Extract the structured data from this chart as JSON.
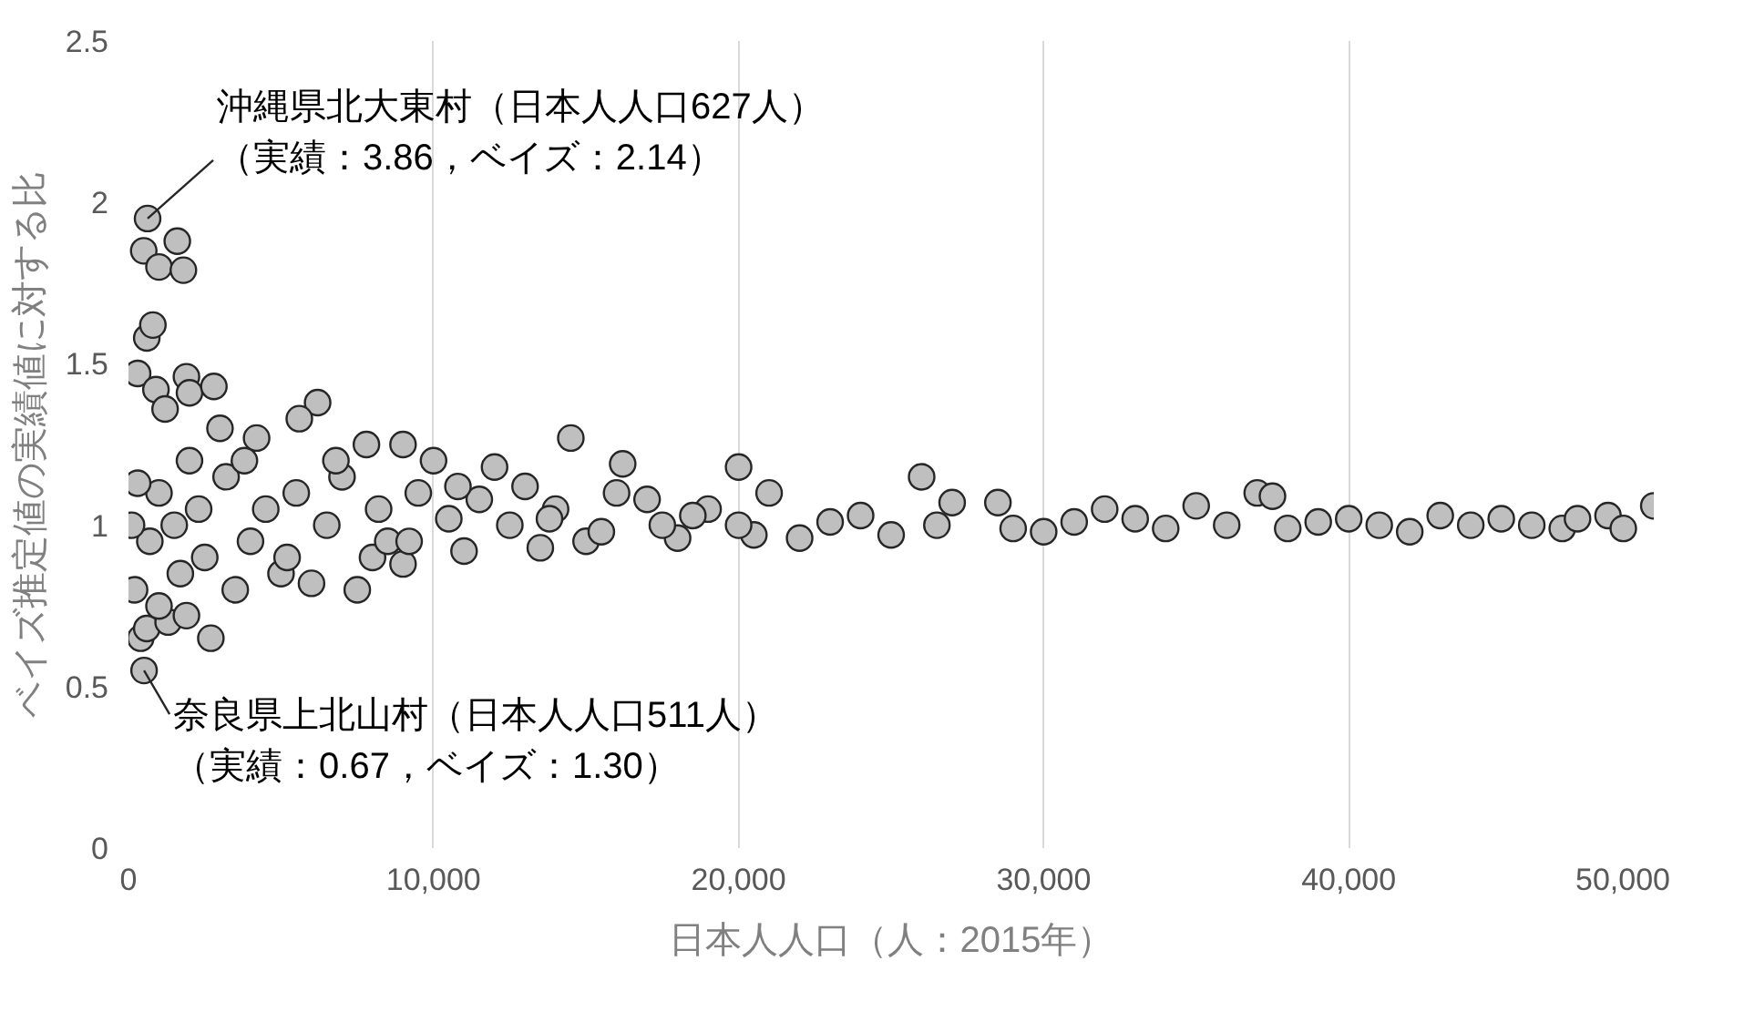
{
  "chart_data": {
    "type": "scatter",
    "xlabel": "日本人人口（人：2015年）",
    "ylabel": "ベイズ推定値の実績値に対する比",
    "xlim": [
      0,
      50000
    ],
    "ylim": [
      0,
      2.5
    ],
    "xticks": [
      {
        "value": 0,
        "label": "0"
      },
      {
        "value": 10000,
        "label": "10,000"
      },
      {
        "value": 20000,
        "label": "20,000"
      },
      {
        "value": 30000,
        "label": "30,000"
      },
      {
        "value": 40000,
        "label": "40,000"
      },
      {
        "value": 50000,
        "label": "50,000"
      }
    ],
    "yticks": [
      0,
      0.5,
      1,
      1.5,
      2,
      2.5
    ],
    "grid": "x",
    "marker": "circle",
    "annotations": [
      "沖縄県北大東村（日本人人口627人）",
      {
        "text": "（実績：3.86，ベイズ：2.14）",
        "x": 627,
        "y": 1.95
      },
      {
        "text": "奈良県上北山村（日本人人口511人）",
        "x": 511,
        "y": 0.55
      },
      "（実績：0.67，ベイズ：1.30）"
    ],
    "series": [
      {
        "color": "#bfbfbf",
        "x": [
          627,
          500,
          1000,
          1600,
          1800,
          300,
          600,
          800,
          900,
          1900,
          2000,
          2800,
          1200,
          6200,
          5600,
          14500,
          16200,
          20000,
          26000,
          511,
          400,
          600,
          1300,
          2700,
          1000,
          1900,
          7500,
          5000,
          9000,
          3000,
          4200,
          7800,
          9000,
          10000,
          12000,
          13000,
          2000,
          3500,
          6000,
          8000,
          11000,
          13500,
          15000,
          18000,
          20500,
          22000,
          25000,
          27000,
          28500,
          30000,
          32000,
          34000,
          35000,
          37000,
          37500,
          40000,
          42000,
          45000,
          47000,
          48500,
          50000,
          49000,
          44000,
          39000,
          36000,
          33000,
          31000,
          29000,
          24000,
          23000,
          21000,
          19000,
          17000,
          16000,
          14000,
          12500,
          11500,
          10500,
          9500,
          8500,
          7000,
          6500,
          5500,
          4500,
          4000,
          3200,
          2500,
          1500,
          1000,
          700,
          300,
          200,
          100,
          1700,
          2300,
          3800,
          5200,
          6800,
          8200,
          9200,
          10800,
          13800,
          15500,
          17500,
          18500,
          20000,
          26500,
          38000,
          41000,
          43000,
          46000,
          47500
        ],
        "values": [
          1.95,
          1.85,
          1.8,
          1.88,
          1.79,
          1.47,
          1.58,
          1.62,
          1.42,
          1.46,
          1.41,
          1.43,
          1.36,
          1.38,
          1.33,
          1.27,
          1.19,
          1.18,
          1.15,
          0.55,
          0.65,
          0.68,
          0.7,
          0.65,
          0.75,
          0.72,
          0.8,
          0.85,
          0.88,
          1.3,
          1.27,
          1.25,
          1.25,
          1.2,
          1.18,
          1.12,
          1.2,
          0.8,
          0.82,
          0.9,
          0.92,
          0.93,
          0.95,
          0.96,
          0.97,
          0.96,
          0.97,
          1.07,
          1.07,
          0.98,
          1.05,
          0.99,
          1.06,
          1.1,
          1.09,
          1.02,
          0.98,
          1.02,
          0.99,
          1.03,
          1.06,
          0.99,
          1.0,
          1.01,
          1.0,
          1.02,
          1.01,
          0.99,
          1.03,
          1.01,
          1.1,
          1.05,
          1.08,
          1.1,
          1.05,
          1.0,
          1.08,
          1.02,
          1.1,
          0.95,
          1.15,
          1.0,
          1.1,
          1.05,
          0.95,
          1.15,
          0.9,
          1.0,
          1.1,
          0.95,
          1.13,
          0.8,
          1.0,
          0.85,
          1.05,
          1.2,
          0.9,
          1.2,
          1.05,
          0.95,
          1.12,
          1.02,
          0.98,
          1.0,
          1.03,
          1.0,
          1.0,
          0.99,
          1.0,
          1.03,
          1.0,
          1.02
        ]
      }
    ]
  }
}
